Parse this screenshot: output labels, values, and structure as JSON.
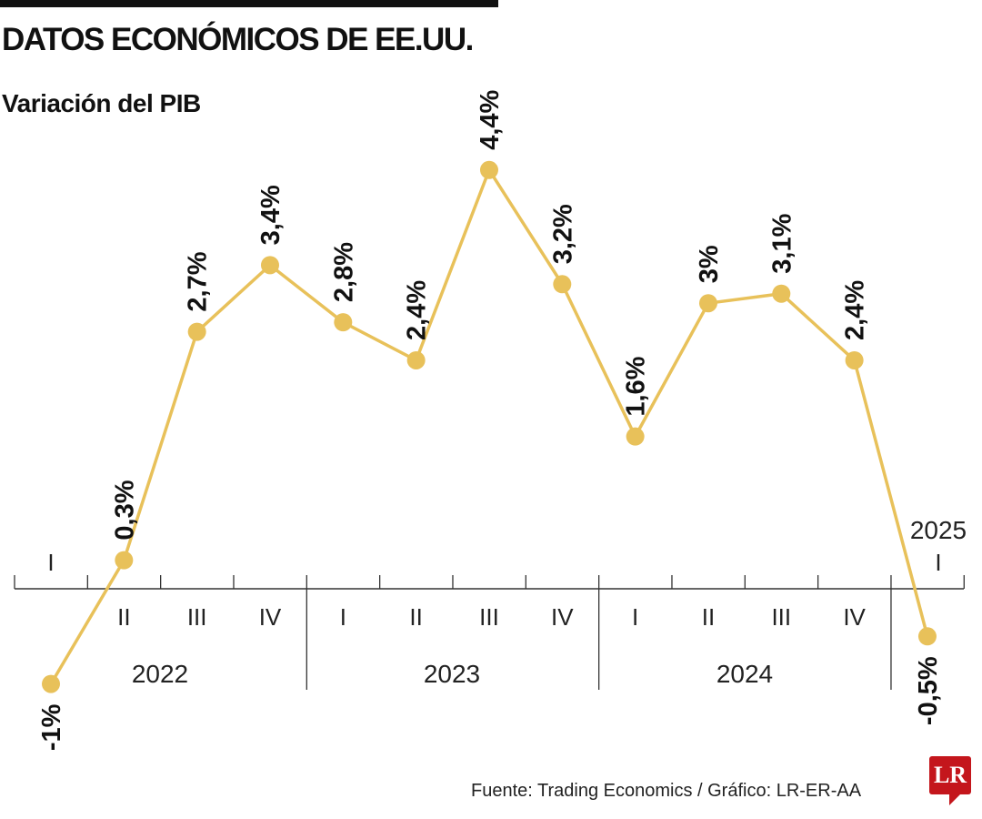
{
  "title": "DATOS ECONÓMICOS DE EE.UU.",
  "subtitle": "Variación del PIB",
  "source": "Fuente: Trading Economics / Gráfico: LR-ER-AA",
  "logo": "LR",
  "chart_data": {
    "type": "line",
    "title": "Variación del PIB",
    "color": "#e8c15a",
    "quarters": [
      "I",
      "II",
      "III",
      "IV",
      "I",
      "II",
      "III",
      "IV",
      "I",
      "II",
      "III",
      "IV",
      "I"
    ],
    "years": [
      "2022",
      "2023",
      "2024",
      "2025"
    ],
    "values": [
      -1,
      0.3,
      2.7,
      3.4,
      2.8,
      2.4,
      4.4,
      3.2,
      1.6,
      3,
      3.1,
      2.4,
      -0.5
    ],
    "labels": [
      "-1%",
      "0,3%",
      "2,7%",
      "3,4%",
      "2,8%",
      "2,4%",
      "4,4%",
      "3,2%",
      "1,6%",
      "3%",
      "3,1%",
      "2,4%",
      "-0,5%"
    ],
    "grid": false
  }
}
